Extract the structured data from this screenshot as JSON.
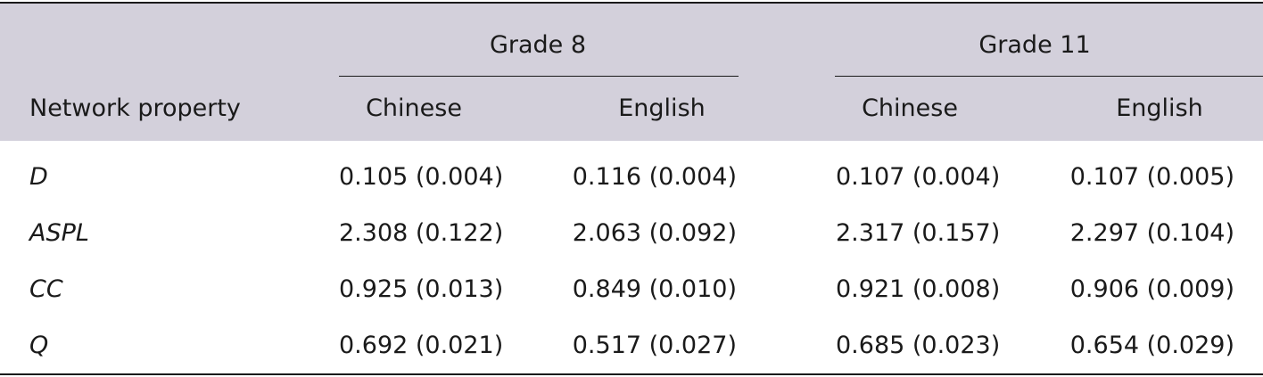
{
  "table": {
    "stub_header": "Network property",
    "groups": [
      {
        "label": "Grade 8",
        "subcolumns": [
          "Chinese",
          "English"
        ]
      },
      {
        "label": "Grade 11",
        "subcolumns": [
          "Chinese",
          "English"
        ]
      }
    ],
    "rows": [
      {
        "property": "D",
        "values": [
          "0.105 (0.004)",
          "0.116 (0.004)",
          "0.107 (0.004)",
          "0.107 (0.005)"
        ]
      },
      {
        "property": "ASPL",
        "values": [
          "2.308 (0.122)",
          "2.063 (0.092)",
          "2.317 (0.157)",
          "2.297 (0.104)"
        ]
      },
      {
        "property": "CC",
        "values": [
          "0.925 (0.013)",
          "0.849 (0.010)",
          "0.921 (0.008)",
          "0.906 (0.009)"
        ]
      },
      {
        "property": "Q",
        "values": [
          "0.692 (0.021)",
          "0.517 (0.027)",
          "0.685 (0.023)",
          "0.654 (0.029)"
        ]
      }
    ],
    "colors": {
      "header_background": "#d3d0db",
      "rules": "#1a1a1a",
      "row_separator": "#ffffff",
      "text": "#1a1a1a"
    }
  }
}
